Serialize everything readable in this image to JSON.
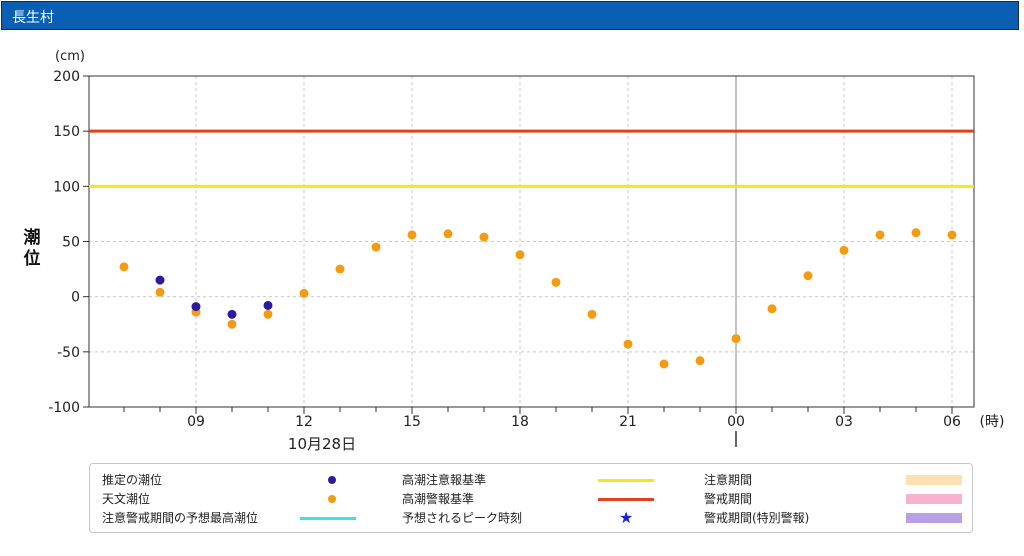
{
  "header": {
    "title": "長生村"
  },
  "chart_data": {
    "type": "scatter",
    "unit_label": "(cm)",
    "ylabel": "潮位",
    "x_unit_label": "(時)",
    "date_label": "10月28日",
    "ylim": [
      -100,
      200
    ],
    "yticks": [
      "-100",
      "-50",
      "0",
      "50",
      "100",
      "150",
      "200"
    ],
    "x_tick_labels": [
      "09",
      "12",
      "15",
      "18",
      "21",
      "00",
      "03",
      "06"
    ],
    "hours": [
      "07",
      "08",
      "09",
      "10",
      "11",
      "12",
      "13",
      "14",
      "15",
      "16",
      "17",
      "18",
      "19",
      "20",
      "21",
      "22",
      "23",
      "00",
      "01",
      "02",
      "03",
      "04",
      "05",
      "06"
    ],
    "series": [
      {
        "name": "天文潮位",
        "color": "#f39c12",
        "values": [
          27,
          4,
          -14,
          -25,
          -16,
          3,
          25,
          45,
          56,
          57,
          54,
          38,
          13,
          -16,
          -43,
          -61,
          -58,
          -38,
          -11,
          19,
          42,
          56,
          58,
          56
        ]
      },
      {
        "name": "推定の潮位",
        "color": "#2b1b9e",
        "values": [
          null,
          15,
          -9,
          -16,
          -8,
          null,
          null,
          null,
          null,
          null,
          null,
          null,
          null,
          null,
          null,
          null,
          null,
          null,
          null,
          null,
          null,
          null,
          null,
          null
        ]
      }
    ],
    "thresholds": [
      {
        "name": "高潮警報基準",
        "value": 150,
        "color": "#e0401e"
      },
      {
        "name": "高潮注意報基準",
        "value": 100,
        "color": "#f5e61e"
      }
    ],
    "grid": true
  },
  "legend": {
    "rows": [
      [
        {
          "label": "推定の潮位",
          "type": "dot",
          "color": "#2b1b9e"
        },
        {
          "label": "高潮注意報基準",
          "type": "line",
          "color": "#f5e61e"
        },
        {
          "label": "注意期間",
          "type": "rect",
          "color": "#fbe0b4"
        }
      ],
      [
        {
          "label": "天文潮位",
          "type": "dot",
          "color": "#f39c12"
        },
        {
          "label": "高潮警報基準",
          "type": "line",
          "color": "#e0401e"
        },
        {
          "label": "警戒期間",
          "type": "rect",
          "color": "#f9b2cb"
        }
      ],
      [
        {
          "label": "注意警戒期間の予想最高潮位",
          "type": "line",
          "color": "#3ee0ec"
        },
        {
          "label": "予想されるピーク時刻",
          "type": "star",
          "color": "#1a22d6"
        },
        {
          "label": "警戒期間(特別警報)",
          "type": "rect",
          "color": "#b9a0e6"
        }
      ]
    ]
  }
}
